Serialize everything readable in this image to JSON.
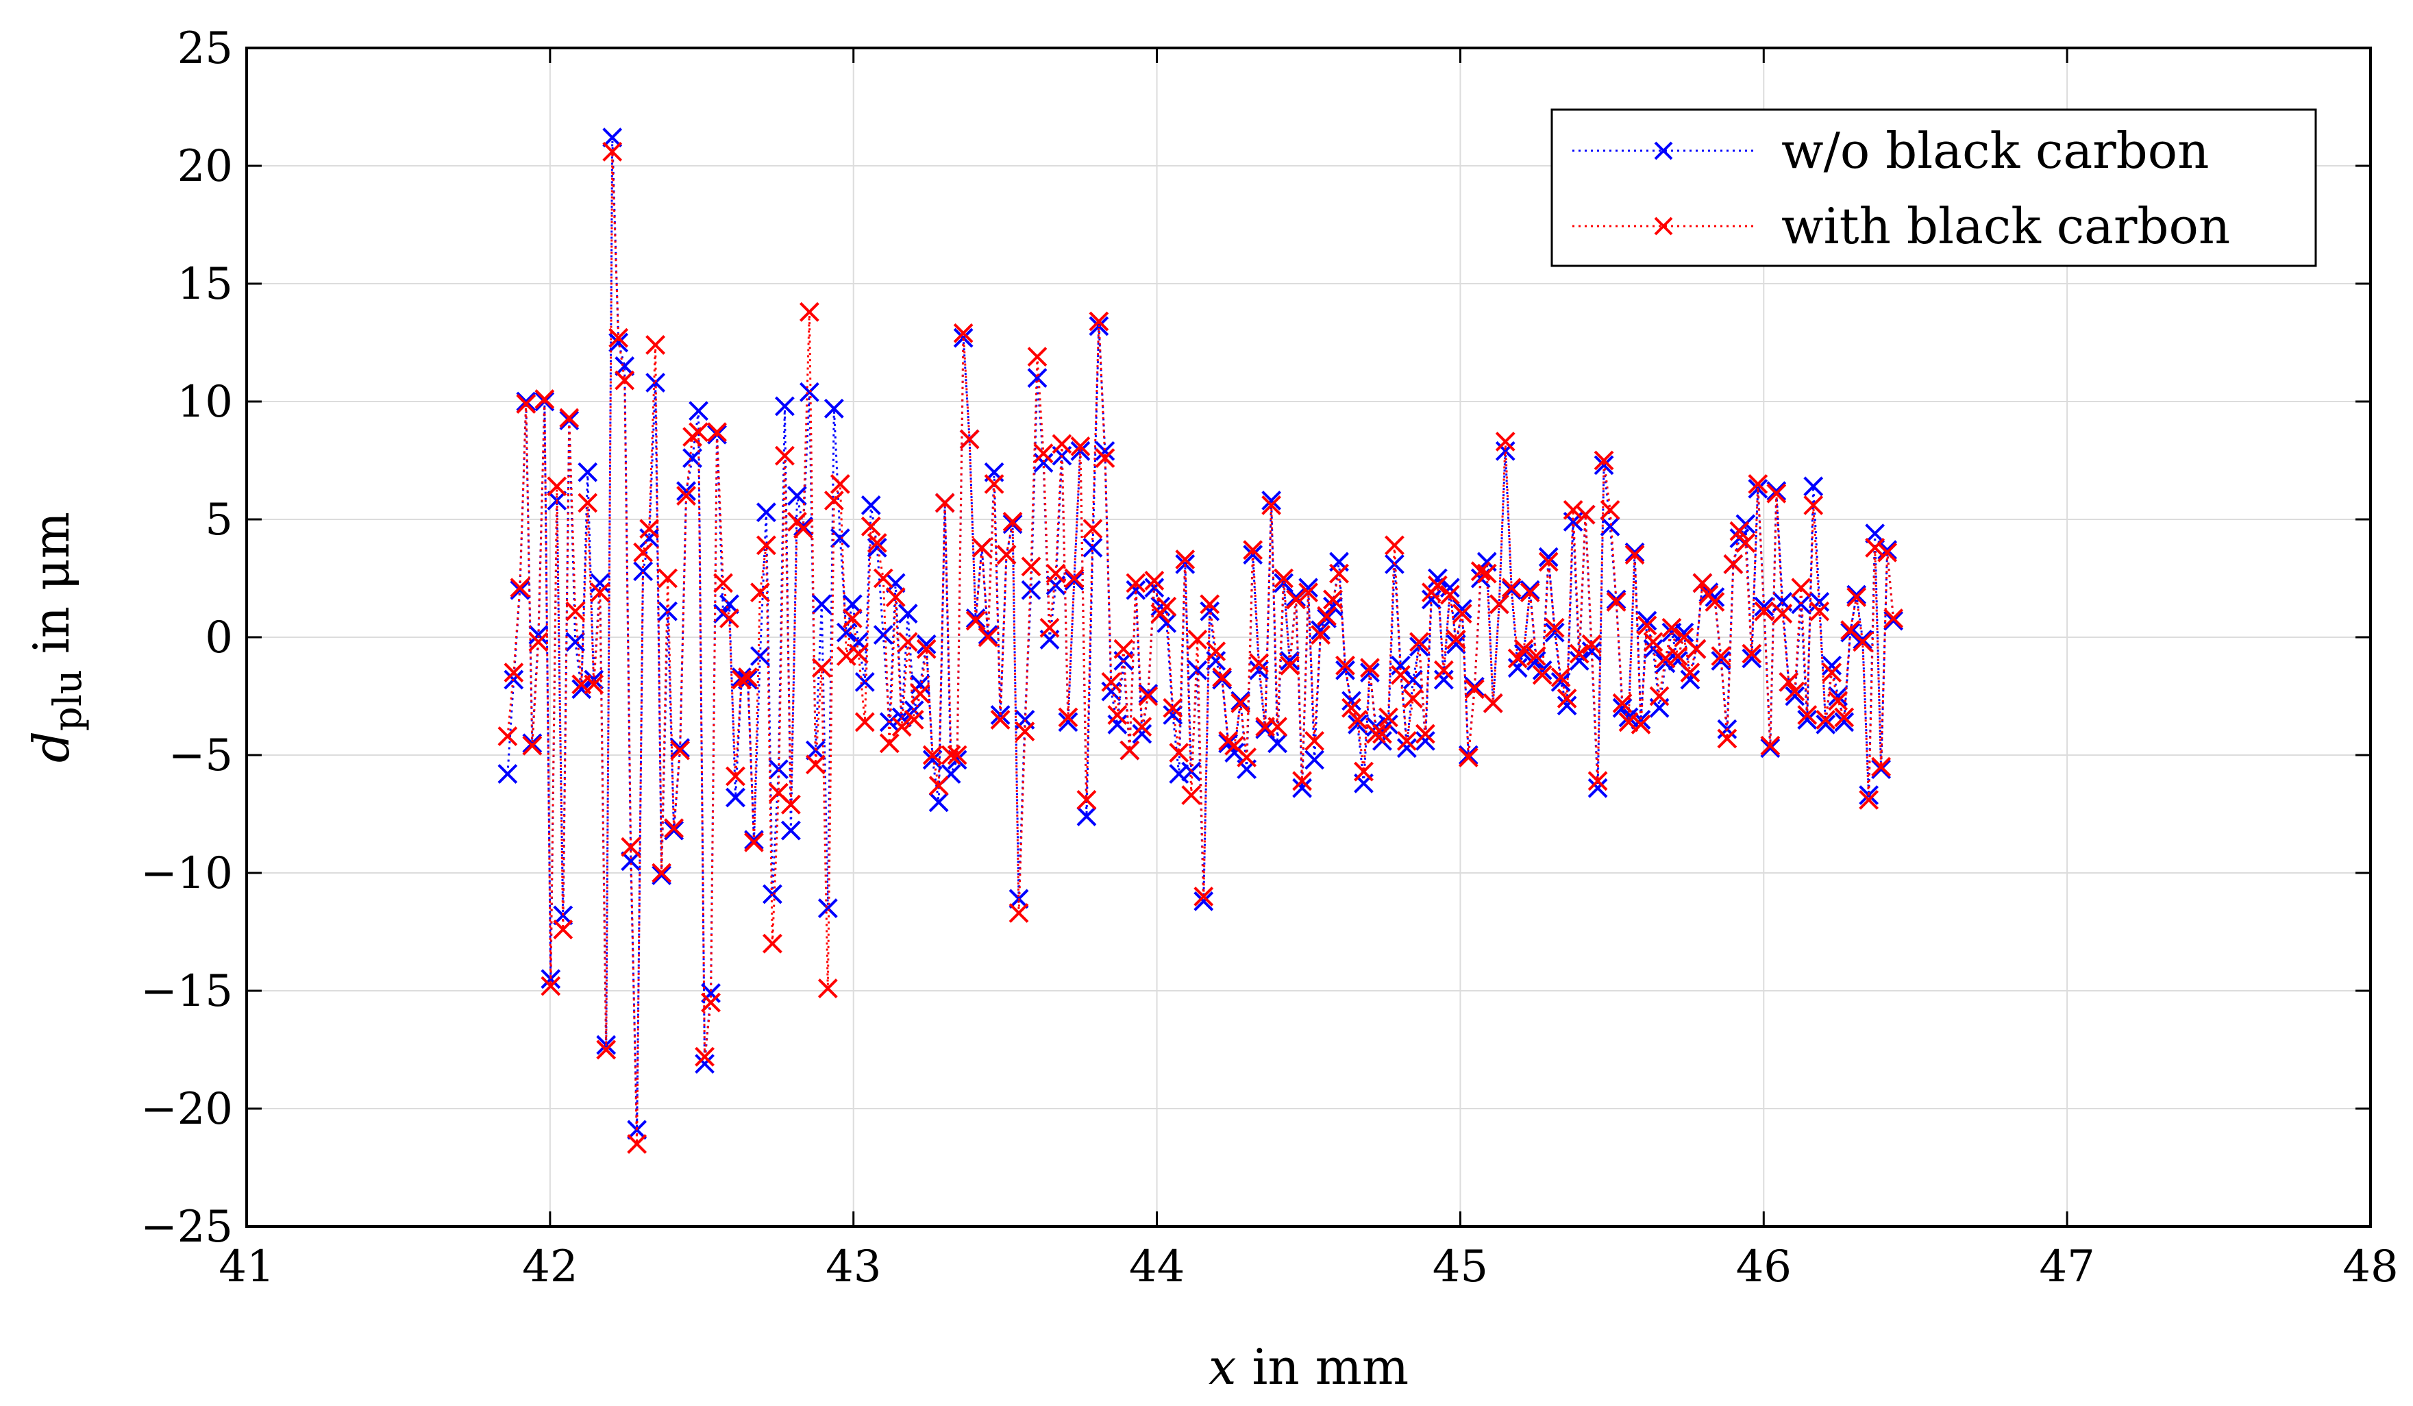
{
  "chart_data": {
    "type": "line",
    "title": "",
    "xlabel_var": "x",
    "xlabel_rest": " in mm",
    "ylabel_var": "d",
    "ylabel_sub": "plu",
    "ylabel_rest": " in μm",
    "xlim": [
      41,
      48
    ],
    "ylim": [
      -25,
      25
    ],
    "grid": true,
    "legend_position": "top-right",
    "xticks": [
      41,
      42,
      43,
      44,
      45,
      46,
      47,
      48
    ],
    "xtick_labels": [
      "41",
      "42",
      "43",
      "44",
      "45",
      "46",
      "47",
      "48"
    ],
    "yticks": [
      -25,
      -20,
      -15,
      -10,
      -5,
      0,
      5,
      10,
      15,
      20,
      25
    ],
    "ytick_labels": [
      "−25",
      "−20",
      "−15",
      "−10",
      "−5",
      "0",
      "5",
      "10",
      "15",
      "20",
      "25"
    ],
    "x_start": 41.86,
    "x_step": 0.0203,
    "series": [
      {
        "name": "w/o black carbon",
        "color": "#0000ff",
        "marker": "x",
        "line_style": "dotted",
        "values": [
          -5.8,
          -1.8,
          2.0,
          10.0,
          -4.5,
          0.1,
          10.0,
          -14.5,
          5.8,
          -11.8,
          9.2,
          -0.2,
          -2.2,
          7.0,
          -1.8,
          2.3,
          -17.3,
          21.2,
          12.5,
          11.5,
          -9.5,
          -20.9,
          2.8,
          4.2,
          10.8,
          -10.1,
          1.1,
          -8.2,
          -4.7,
          6.2,
          7.6,
          9.6,
          -18.1,
          -15.1,
          8.6,
          1.0,
          1.4,
          -6.8,
          -1.7,
          -1.8,
          -8.6,
          -0.8,
          5.3,
          -10.9,
          -5.6,
          9.8,
          -8.2,
          6.0,
          4.7,
          10.4,
          -4.8,
          1.4,
          -11.5,
          9.7,
          4.2,
          0.2,
          1.4,
          -0.2,
          -1.9,
          5.6,
          3.8,
          0.1,
          -3.6,
          2.3,
          -3.4,
          1.0,
          -3.1,
          -2.0,
          -0.3,
          -5.2,
          -7.0,
          5.7,
          -5.8,
          -5.2,
          12.7,
          8.4,
          0.8,
          3.8,
          0.1,
          7.0,
          -3.3,
          3.5,
          4.8,
          -11.1,
          -3.5,
          2.0,
          11.0,
          7.4,
          -0.1,
          2.2,
          7.7,
          -3.6,
          2.4,
          7.9,
          -7.6,
          3.8,
          13.2,
          7.9,
          -2.3,
          -3.7,
          -1.0,
          -4.8,
          2.0,
          -4.1,
          -2.4,
          2.1,
          1.3,
          0.6,
          -3.3,
          -5.8,
          3.1,
          -5.7,
          -1.4,
          -11.2,
          1.1,
          -1.0,
          -1.8,
          -4.5,
          -4.9,
          -2.7,
          -5.6,
          3.5,
          -1.4,
          -3.9,
          5.8,
          -4.5,
          2.3,
          -1.0,
          1.7,
          -6.4,
          2.1,
          -5.2,
          0.3,
          0.8,
          1.3,
          3.2,
          -1.4,
          -2.7,
          -3.7,
          -6.2,
          -1.5,
          -3.8,
          -4.4,
          -3.7,
          3.1,
          -1.2,
          -4.7,
          -1.8,
          -0.4,
          -4.4,
          1.6,
          2.5,
          -1.8,
          2.1,
          -0.3,
          1.2,
          -5.0,
          -2.1,
          2.5,
          3.2,
          -2.8,
          1.4,
          7.9,
          2.0,
          -1.3,
          -0.7,
          2.0,
          -1.0,
          -1.4,
          3.4,
          0.2,
          -1.9,
          -2.9,
          4.9,
          -1.0,
          5.2,
          -0.6,
          -6.4,
          7.3,
          4.7,
          1.6,
          -3.0,
          -3.4,
          3.6,
          -3.5,
          0.7,
          -0.5,
          -3.0,
          -1.1,
          0.2,
          -1.0,
          0.2,
          -1.8,
          -0.5,
          2.3,
          1.9,
          1.7,
          -1.0,
          -3.9,
          3.1,
          4.2,
          4.8,
          -0.9,
          6.3,
          1.3,
          -4.7,
          6.2,
          1.5,
          -1.9,
          -2.5,
          1.4,
          -3.5,
          6.4,
          1.5,
          -3.7,
          -1.2,
          -2.5,
          -3.6,
          0.2,
          1.8,
          -0.1,
          -6.7,
          4.4,
          -5.6,
          3.7,
          0.7
        ]
      },
      {
        "name": "with black carbon",
        "color": "#ff0000",
        "marker": "x",
        "line_style": "dotted",
        "values": [
          -4.2,
          -1.5,
          2.1,
          9.9,
          -4.6,
          -0.2,
          10.1,
          -14.8,
          6.4,
          -12.4,
          9.3,
          1.1,
          -2.0,
          5.7,
          -2.0,
          1.9,
          -17.5,
          20.6,
          12.7,
          10.9,
          -8.9,
          -21.5,
          3.6,
          4.6,
          12.4,
          -10.0,
          2.5,
          -8.1,
          -4.8,
          6.0,
          8.5,
          8.7,
          -17.8,
          -15.5,
          8.7,
          2.3,
          0.8,
          -5.9,
          -1.8,
          -1.7,
          -8.7,
          1.9,
          3.9,
          -13.0,
          -6.6,
          7.7,
          -7.1,
          4.9,
          4.6,
          13.8,
          -5.4,
          -1.3,
          -14.9,
          5.8,
          6.5,
          -0.8,
          0.8,
          -0.7,
          -3.6,
          4.7,
          4.0,
          2.5,
          -4.5,
          1.7,
          -3.8,
          -0.2,
          -3.5,
          -2.4,
          -0.5,
          -5.0,
          -6.3,
          5.7,
          -5.0,
          -5.0,
          12.9,
          8.4,
          0.7,
          3.8,
          0.0,
          6.5,
          -3.5,
          3.5,
          4.9,
          -11.7,
          -4.0,
          3.0,
          11.9,
          7.8,
          0.4,
          2.7,
          8.2,
          -3.4,
          2.5,
          8.1,
          -6.9,
          4.6,
          13.4,
          7.6,
          -1.9,
          -3.3,
          -0.5,
          -4.8,
          2.3,
          -3.8,
          -2.5,
          2.4,
          1.0,
          1.3,
          -3.0,
          -4.9,
          3.3,
          -6.7,
          -0.1,
          -11.0,
          1.4,
          -0.6,
          -1.7,
          -4.4,
          -4.6,
          -2.8,
          -5.1,
          3.7,
          -1.1,
          -3.8,
          5.6,
          -3.8,
          2.5,
          -1.2,
          1.6,
          -6.1,
          1.9,
          -4.4,
          0.1,
          0.9,
          1.6,
          2.7,
          -1.2,
          -3.0,
          -3.5,
          -5.7,
          -1.3,
          -4.1,
          -4.1,
          -3.4,
          3.9,
          -1.6,
          -4.4,
          -2.6,
          -0.2,
          -4.1,
          1.9,
          2.2,
          -1.4,
          1.8,
          -0.1,
          1.0,
          -5.1,
          -2.2,
          2.8,
          2.7,
          -2.8,
          1.4,
          8.3,
          2.1,
          -0.9,
          -0.5,
          1.9,
          -0.8,
          -1.6,
          3.2,
          0.4,
          -1.7,
          -2.6,
          5.4,
          -0.7,
          5.2,
          -0.3,
          -6.1,
          7.5,
          5.4,
          1.5,
          -2.8,
          -3.6,
          3.5,
          -3.7,
          0.5,
          -0.2,
          -2.5,
          -0.9,
          0.4,
          -0.8,
          0.0,
          -1.5,
          -0.5,
          2.3,
          1.8,
          1.5,
          -0.8,
          -4.3,
          3.1,
          4.5,
          4.0,
          -0.7,
          6.5,
          1.1,
          -4.6,
          6.1,
          1.0,
          -1.9,
          -2.3,
          2.1,
          -3.3,
          5.6,
          1.1,
          -3.5,
          -1.5,
          -2.7,
          -3.4,
          0.3,
          1.7,
          -0.2,
          -6.9,
          3.8,
          -5.5,
          3.6,
          0.8
        ]
      }
    ]
  }
}
